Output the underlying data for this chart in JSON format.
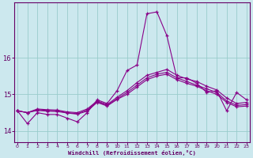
{
  "title": "",
  "xlabel": "Windchill (Refroidissement éolien,°C)",
  "ylabel": "",
  "bg_color": "#cce8ee",
  "line_color": "#880088",
  "grid_color": "#99cccc",
  "axis_color": "#660066",
  "text_color": "#660066",
  "xlim": [
    0,
    23
  ],
  "ylim": [
    13.7,
    17.5
  ],
  "yticks": [
    14,
    15,
    16
  ],
  "xticks": [
    0,
    1,
    2,
    3,
    4,
    5,
    6,
    7,
    8,
    9,
    10,
    11,
    12,
    13,
    14,
    15,
    16,
    17,
    18,
    19,
    20,
    21,
    22,
    23
  ],
  "series": [
    [
      14.55,
      14.2,
      14.5,
      14.45,
      14.45,
      14.35,
      14.25,
      14.5,
      14.85,
      14.75,
      15.1,
      15.65,
      15.8,
      17.2,
      17.25,
      16.6,
      15.45,
      15.45,
      15.3,
      15.05,
      15.1,
      14.55,
      15.05,
      14.85
    ],
    [
      14.55,
      14.5,
      14.6,
      14.58,
      14.57,
      14.52,
      14.5,
      14.6,
      14.82,
      14.72,
      14.92,
      15.1,
      15.32,
      15.52,
      15.6,
      15.68,
      15.52,
      15.42,
      15.35,
      15.22,
      15.12,
      14.9,
      14.75,
      14.78
    ],
    [
      14.55,
      14.5,
      14.58,
      14.56,
      14.55,
      14.5,
      14.47,
      14.57,
      14.8,
      14.7,
      14.88,
      15.05,
      15.25,
      15.45,
      15.55,
      15.6,
      15.45,
      15.35,
      15.25,
      15.15,
      15.05,
      14.82,
      14.7,
      14.72
    ],
    [
      14.55,
      14.5,
      14.56,
      14.54,
      14.53,
      14.49,
      14.46,
      14.54,
      14.78,
      14.68,
      14.86,
      15.0,
      15.2,
      15.4,
      15.5,
      15.55,
      15.4,
      15.3,
      15.22,
      15.1,
      15.0,
      14.78,
      14.66,
      14.68
    ]
  ]
}
